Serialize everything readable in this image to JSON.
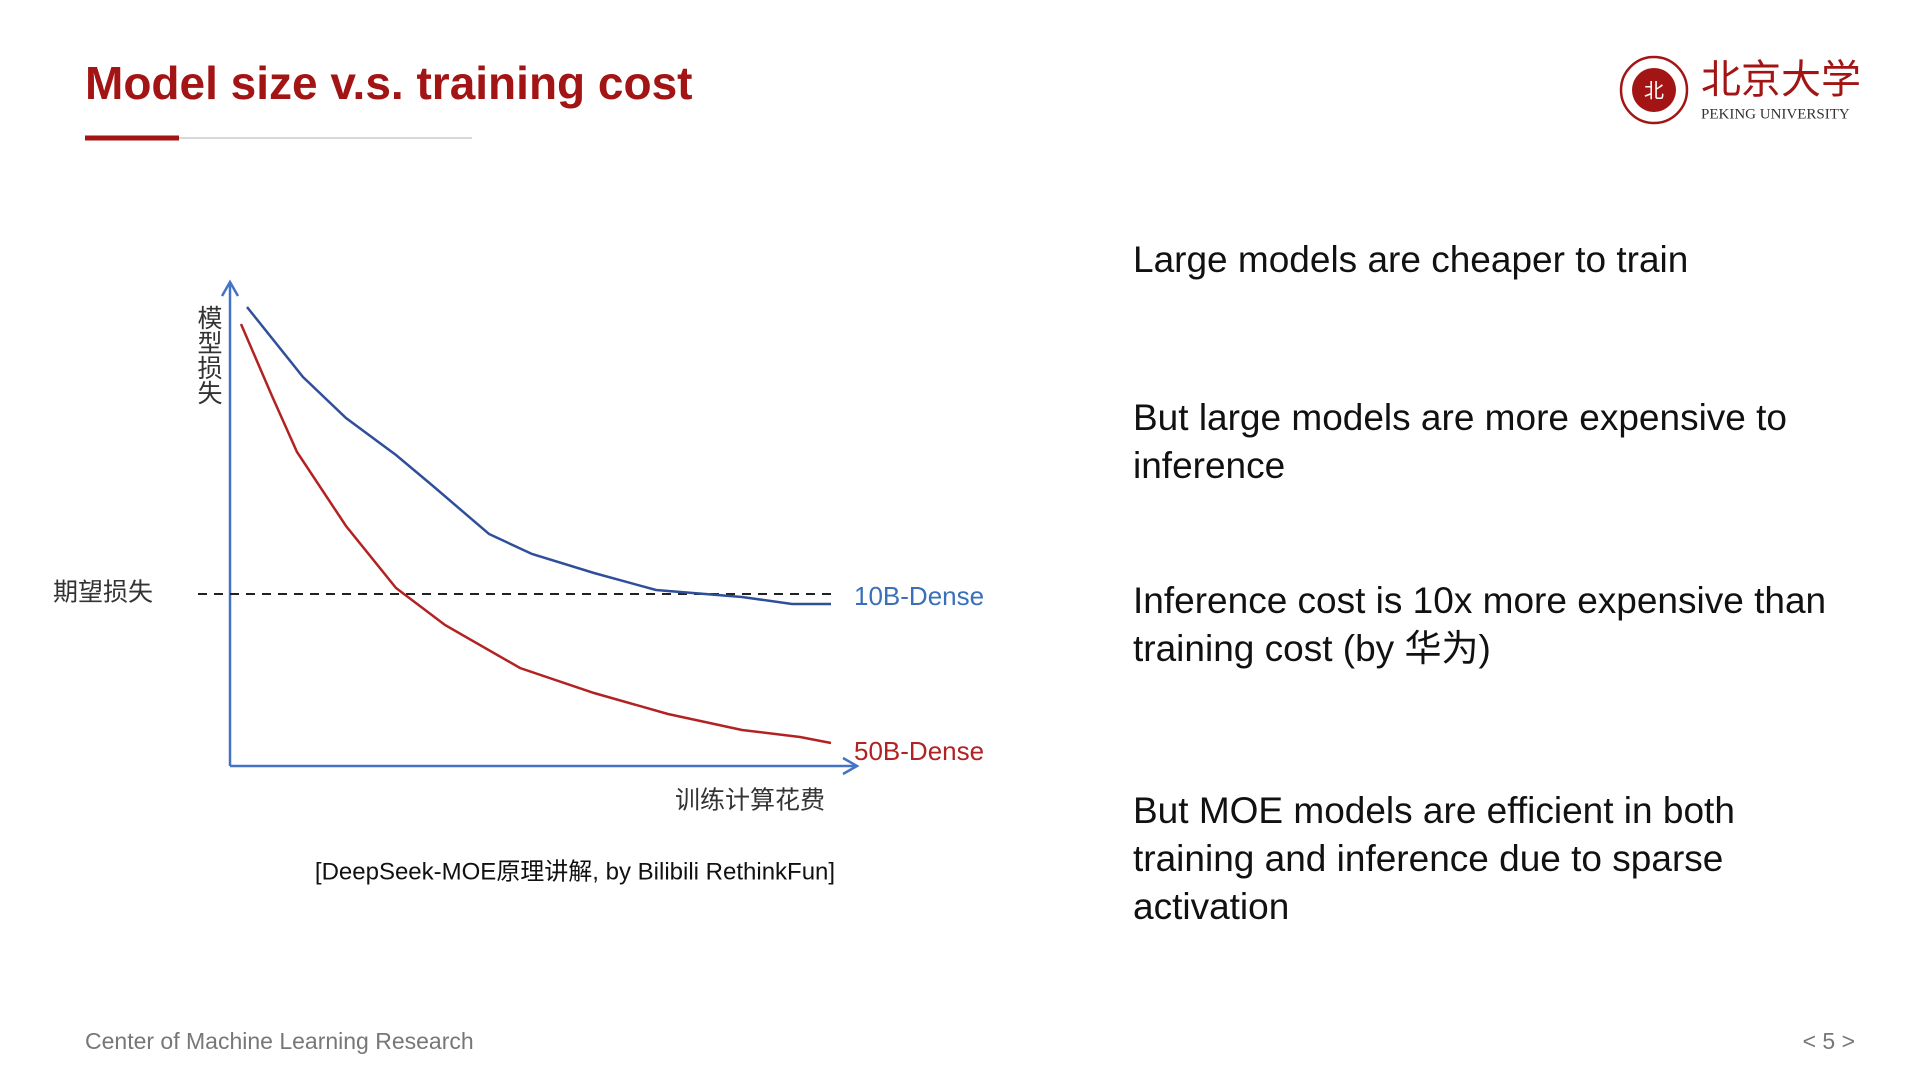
{
  "header": {
    "title": "Model size v.s. training cost"
  },
  "logo": {
    "name_cn": "北京大学",
    "name_en": "PEKING UNIVERSITY"
  },
  "figure": {
    "y_label": "模型损失",
    "x_label": "训练计算花费",
    "threshold_label": "期望损失",
    "series_labels": [
      "10B-Dense",
      "50B-Dense"
    ],
    "caption": "[DeepSeek-MOE原理讲解, by Bilibili RethinkFun]"
  },
  "bullets": [
    "Large models are cheaper to train",
    "But large models are more expensive to inference",
    "Inference cost is 10x more expensive than training cost (by 华为)",
    "But MOE models are efficient in both training and inference due to sparse activation"
  ],
  "footer": {
    "text": "Center of Machine Learning Research",
    "page": "< 5 >"
  }
}
